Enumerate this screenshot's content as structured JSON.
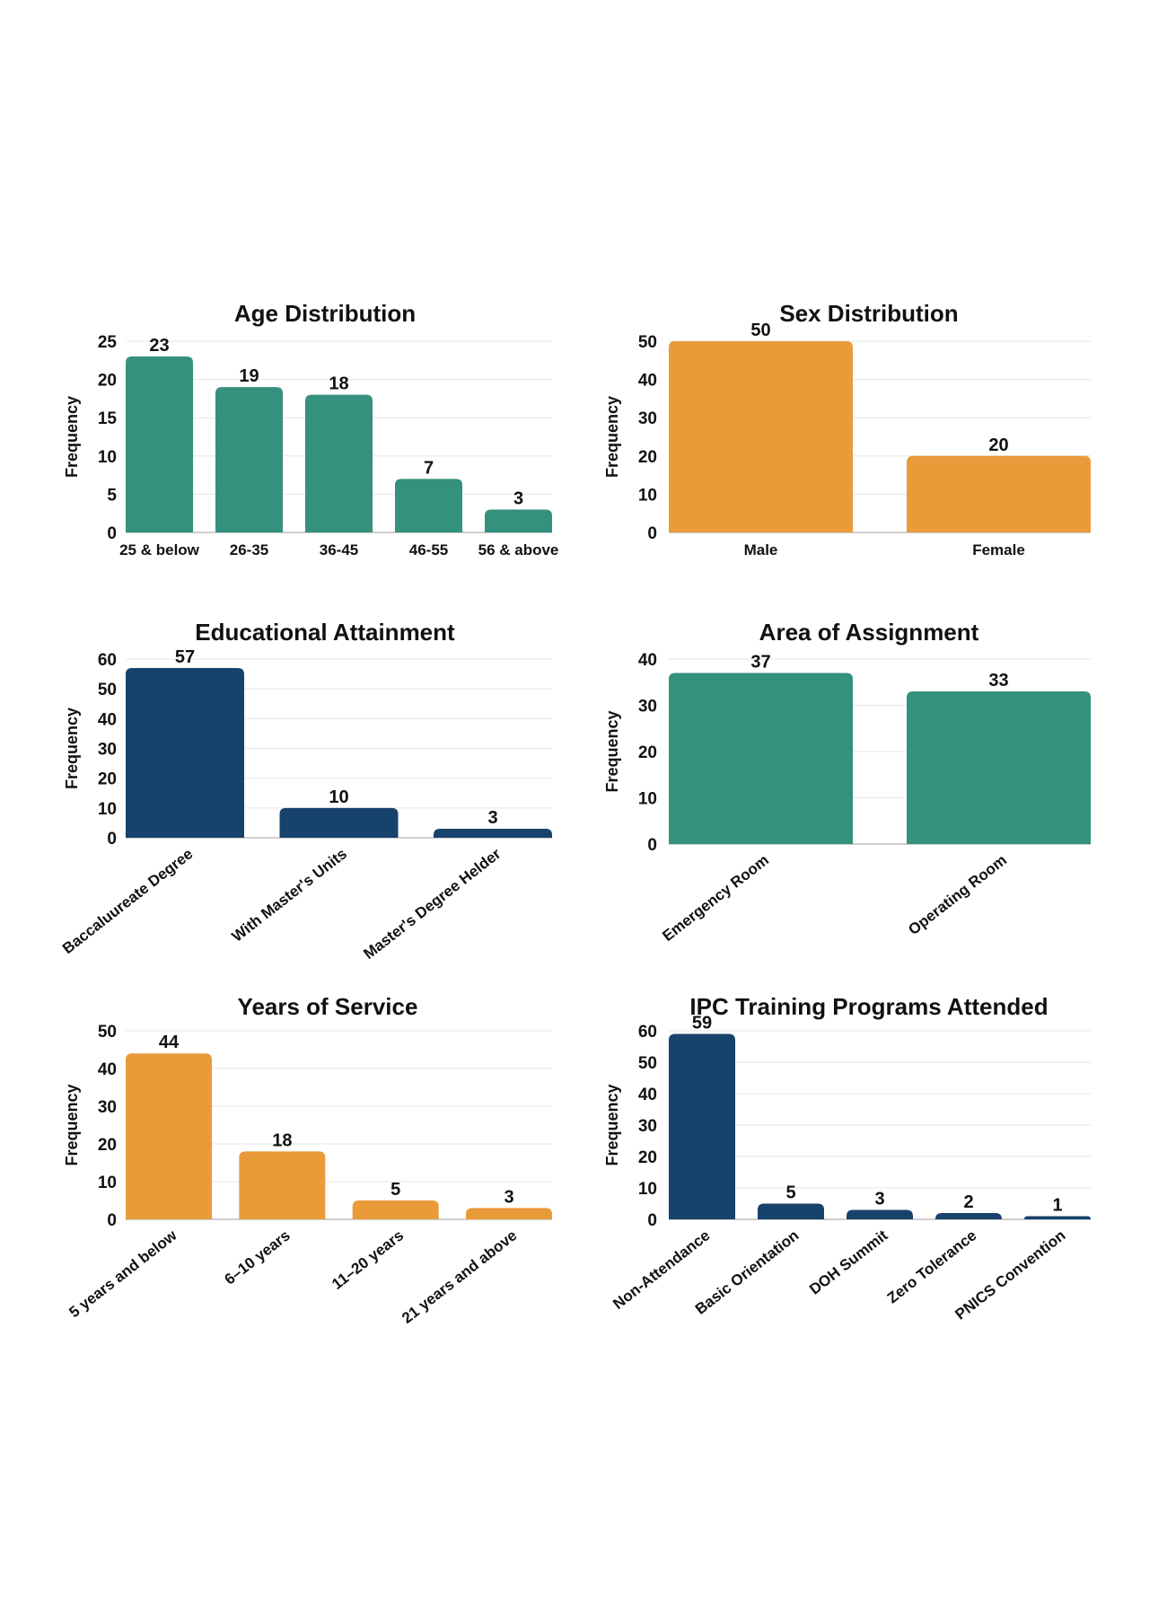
{
  "colors": {
    "teal": "#34917e",
    "orange": "#e99b3a",
    "navy": "#17426b"
  },
  "chart_data": [
    {
      "id": "age",
      "type": "bar",
      "title": "Age Distribution",
      "ylabel": "Frequency",
      "xlabel": "",
      "categories": [
        "25 & below",
        "26-35",
        "36-45",
        "46-55",
        "56 & above"
      ],
      "values": [
        23,
        19,
        18,
        7,
        3
      ],
      "ylim": [
        0,
        25
      ],
      "yticks": [
        0,
        5,
        10,
        15,
        20,
        25
      ],
      "color": "teal",
      "grid": true,
      "legend": "none"
    },
    {
      "id": "sex",
      "type": "bar",
      "title": "Sex Distribution",
      "ylabel": "Frequency",
      "xlabel": "",
      "categories": [
        "Male",
        "Female"
      ],
      "values": [
        50,
        20
      ],
      "ylim": [
        0,
        50
      ],
      "yticks": [
        0,
        10,
        20,
        30,
        40,
        50
      ],
      "color": "orange",
      "grid": true,
      "legend": "none"
    },
    {
      "id": "education",
      "type": "bar",
      "title": "Educational Attainment",
      "ylabel": "Frequency",
      "xlabel": "",
      "categories": [
        "Baccaluureate Degree",
        "With Master's Units",
        "Master's Degree Helder"
      ],
      "values": [
        57,
        10,
        3
      ],
      "ylim": [
        0,
        60
      ],
      "yticks": [
        0,
        10,
        20,
        30,
        40,
        50,
        60
      ],
      "color": "navy",
      "grid": true,
      "legend": "none"
    },
    {
      "id": "assignment",
      "type": "bar",
      "title": "Area of Assignment",
      "ylabel": "Frequency",
      "xlabel": "",
      "categories": [
        "Emergency Room",
        "Operating Room"
      ],
      "values": [
        37,
        33
      ],
      "ylim": [
        0,
        40
      ],
      "yticks": [
        0,
        10,
        20,
        30,
        40
      ],
      "color": "teal",
      "grid": true,
      "legend": "none"
    },
    {
      "id": "service",
      "type": "bar",
      "title": "Years of Service",
      "ylabel": "Frequency",
      "xlabel": "",
      "categories": [
        "5 years and below",
        "6–10 years",
        "11–20 years",
        "21 years and above"
      ],
      "values": [
        44,
        18,
        5,
        3
      ],
      "ylim": [
        0,
        50
      ],
      "yticks": [
        0,
        10,
        20,
        30,
        40,
        50
      ],
      "color": "orange",
      "grid": true,
      "legend": "none"
    },
    {
      "id": "training",
      "type": "bar",
      "title": "IPC Training Programs Attended",
      "ylabel": "Frequency",
      "xlabel": "",
      "categories": [
        "Non-Attendance",
        "Basic Orientation",
        "DOH Summit",
        "Zero Tolerance",
        "PNICS Convention"
      ],
      "values": [
        59,
        5,
        3,
        2,
        1
      ],
      "ylim": [
        0,
        60
      ],
      "yticks": [
        0,
        10,
        20,
        30,
        40,
        50,
        60
      ],
      "color": "navy",
      "grid": true,
      "legend": "none"
    }
  ]
}
